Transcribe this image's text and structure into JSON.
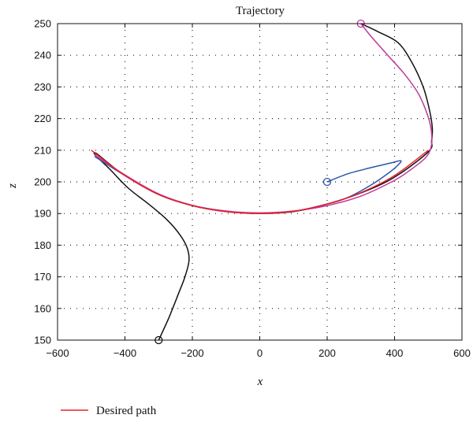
{
  "chart_data": {
    "type": "line",
    "title": "Trajectory",
    "xlabel": "x",
    "ylabel": "z",
    "xlim": [
      -600,
      600
    ],
    "ylim": [
      150,
      250
    ],
    "xticks": [
      -600,
      -400,
      -200,
      0,
      200,
      400,
      600
    ],
    "yticks": [
      150,
      160,
      170,
      180,
      190,
      200,
      210,
      220,
      230,
      240,
      250
    ],
    "xtick_labels": [
      "−600",
      "−400",
      "−200",
      "0",
      "200",
      "400",
      "600"
    ],
    "ytick_labels": [
      "150",
      "160",
      "170",
      "180",
      "190",
      "200",
      "210",
      "220",
      "230",
      "240",
      "250"
    ],
    "grid": true,
    "legend_position": "bottom-left",
    "series": [
      {
        "name": "Desired path",
        "color": "#e8202a",
        "in_legend": true,
        "points": [
          [
            -500,
            210
          ],
          [
            -400,
            202
          ],
          [
            -300,
            196
          ],
          [
            -200,
            192.5
          ],
          [
            -100,
            190.6
          ],
          [
            0,
            190
          ],
          [
            100,
            190.7
          ],
          [
            200,
            193
          ],
          [
            300,
            196.6
          ],
          [
            400,
            202
          ],
          [
            500,
            210
          ]
        ]
      },
      {
        "name": "",
        "color": "#111111",
        "in_legend": false,
        "start_marker": true,
        "points": [
          [
            -300,
            150
          ],
          [
            -270,
            157
          ],
          [
            -240,
            165
          ],
          [
            -222,
            170
          ],
          [
            -210,
            175
          ],
          [
            -215,
            179
          ],
          [
            -235,
            183
          ],
          [
            -275,
            188
          ],
          [
            -330,
            193
          ],
          [
            -390,
            198
          ],
          [
            -445,
            204
          ],
          [
            -488,
            208.5
          ],
          [
            -485,
            209
          ],
          [
            -450,
            206
          ],
          [
            -400,
            202
          ],
          [
            -300,
            196
          ],
          [
            -200,
            192.5
          ],
          [
            -100,
            190.6
          ],
          [
            0,
            190
          ],
          [
            100,
            190.6
          ],
          [
            200,
            193
          ],
          [
            300,
            196.5
          ],
          [
            400,
            201.5
          ],
          [
            500,
            209.5
          ],
          [
            510,
            213
          ],
          [
            512,
            217
          ],
          [
            505,
            222
          ],
          [
            485,
            230
          ],
          [
            450,
            238
          ],
          [
            410,
            244
          ],
          [
            350,
            247.5
          ],
          [
            300,
            250
          ]
        ]
      },
      {
        "name": "",
        "color": "#2b55a8",
        "in_legend": false,
        "start_marker": true,
        "points": [
          [
            200,
            200
          ],
          [
            260,
            202.5
          ],
          [
            330,
            204.5
          ],
          [
            390,
            206
          ],
          [
            418,
            206.7
          ],
          [
            412,
            205.5
          ],
          [
            385,
            203
          ],
          [
            330,
            199
          ],
          [
            260,
            195
          ],
          [
            200,
            193
          ],
          [
            100,
            190.7
          ],
          [
            0,
            190
          ],
          [
            -100,
            190.7
          ],
          [
            -200,
            192.5
          ],
          [
            -300,
            196
          ],
          [
            -400,
            202
          ],
          [
            -490,
            208
          ]
        ]
      },
      {
        "name": "",
        "color": "#c0389a",
        "in_legend": false,
        "start_marker": true,
        "points": [
          [
            300,
            250
          ],
          [
            330,
            246
          ],
          [
            380,
            240
          ],
          [
            430,
            234
          ],
          [
            470,
            228
          ],
          [
            495,
            222
          ],
          [
            508,
            217
          ],
          [
            510,
            212
          ],
          [
            495,
            208
          ],
          [
            450,
            204
          ],
          [
            400,
            200.5
          ],
          [
            300,
            195.5
          ],
          [
            200,
            192.5
          ],
          [
            100,
            190.8
          ],
          [
            0,
            190.2
          ],
          [
            -100,
            190.8
          ],
          [
            -200,
            192.6
          ],
          [
            -300,
            196.2
          ],
          [
            -400,
            202.2
          ],
          [
            -490,
            208.5
          ]
        ]
      }
    ]
  }
}
